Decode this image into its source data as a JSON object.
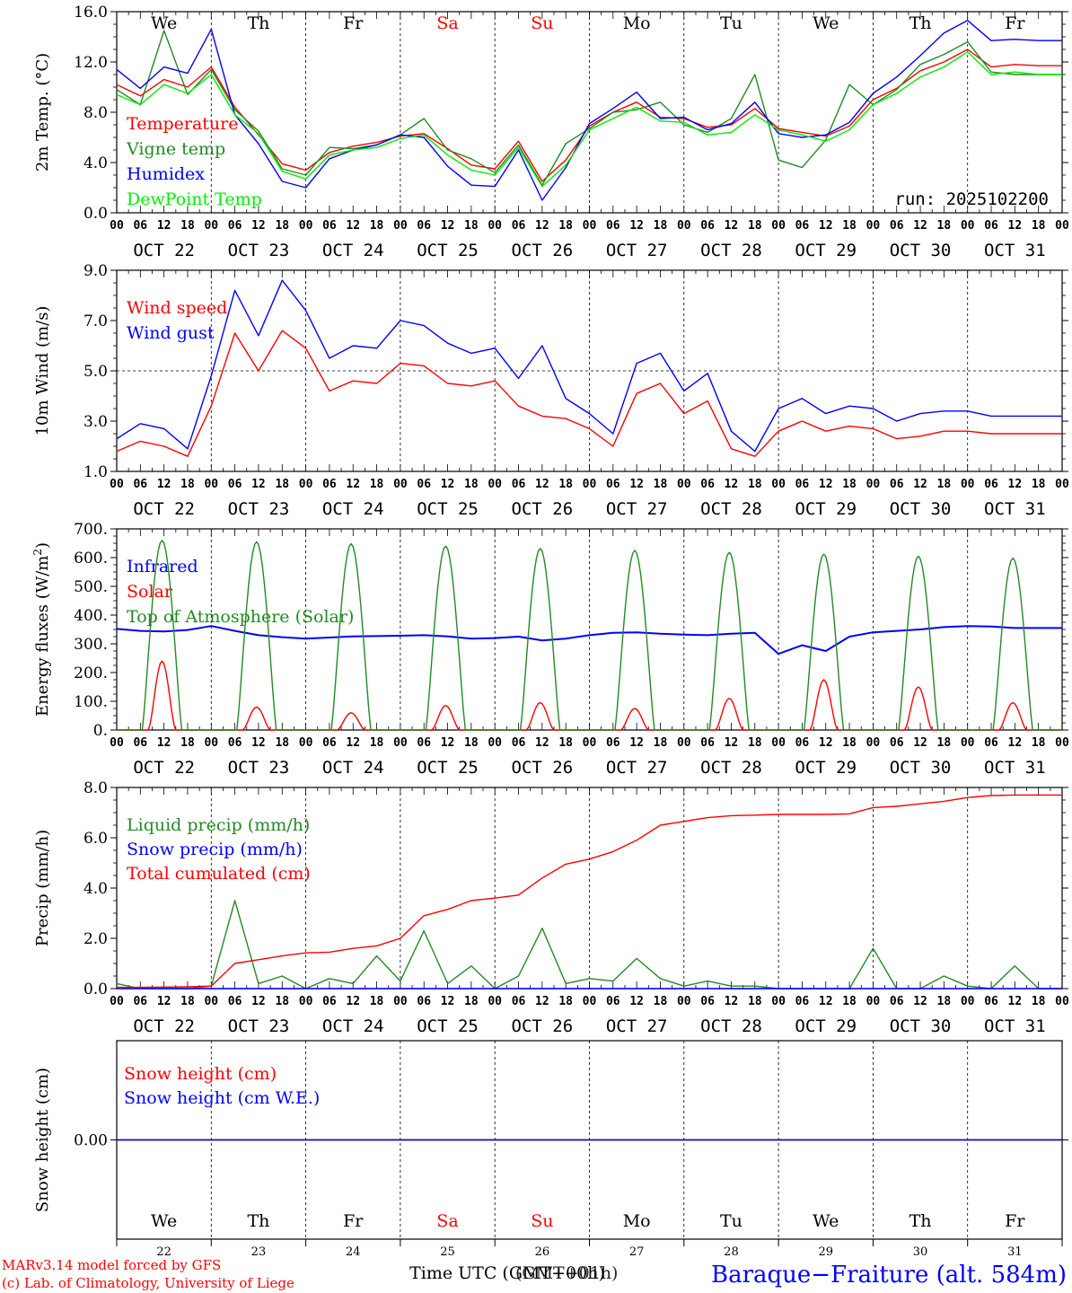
{
  "days": [
    {
      "name": "We",
      "weekend": false,
      "date": "OCT 22",
      "num": "22"
    },
    {
      "name": "Th",
      "weekend": false,
      "date": "OCT 23",
      "num": "23"
    },
    {
      "name": "Fr",
      "weekend": false,
      "date": "OCT 24",
      "num": "24"
    },
    {
      "name": "Sa",
      "weekend": true,
      "date": "OCT 25",
      "num": "25"
    },
    {
      "name": "Su",
      "weekend": true,
      "date": "OCT 26",
      "num": "26"
    },
    {
      "name": "Mo",
      "weekend": false,
      "date": "OCT 27",
      "num": "27"
    },
    {
      "name": "Tu",
      "weekend": false,
      "date": "OCT 28",
      "num": "28"
    },
    {
      "name": "We",
      "weekend": false,
      "date": "OCT 29",
      "num": "29"
    },
    {
      "name": "Th",
      "weekend": false,
      "date": "OCT 30",
      "num": "30"
    },
    {
      "name": "Fr",
      "weekend": false,
      "date": "OCT 31",
      "num": "31"
    }
  ],
  "hour_ticks": [
    "00",
    "06",
    "12",
    "18"
  ],
  "run_label": "run: 2025102200",
  "footer": {
    "credit_1": "MARv3.14 model forced by GFS",
    "credit_2": "(c) Lab. of Climatology, University of Liege",
    "x_title": "Time UTC (GMT+00h)",
    "x_title_overlay": "(GMT+01h)",
    "station": "Baraque−Fraiture (alt. 584m)"
  },
  "colors": {
    "red": "#ff0000",
    "green": "#228b22",
    "blue": "#0000ff",
    "lime": "#00ee00",
    "weekend": "#ff0000",
    "axis": "#000000"
  },
  "chart_data": [
    {
      "type": "line",
      "title": "2m Temp. (°C)",
      "ylabel_main": "2m Temp. (",
      "ylabel_unit": "°C)",
      "ylim": [
        0,
        16
      ],
      "yticks": [
        "0.0",
        "4.0",
        "8.0",
        "12.0",
        "16.0"
      ],
      "ytick_values": [
        0,
        4,
        8,
        12,
        16
      ],
      "x_hours": [
        0,
        6,
        12,
        18,
        24,
        30,
        36,
        42,
        48,
        54,
        60,
        66,
        72,
        78,
        84,
        90,
        96,
        102,
        108,
        114,
        120,
        126,
        132,
        138,
        144,
        150,
        156,
        162,
        168,
        174,
        180,
        186,
        192,
        198,
        204,
        210,
        216,
        222,
        228,
        234,
        240
      ],
      "series": [
        {
          "name": "Temperature",
          "color": "red",
          "values": [
            10.2,
            9.3,
            10.6,
            10.0,
            11.6,
            8.4,
            6.2,
            3.9,
            3.4,
            4.8,
            5.3,
            5.6,
            6.1,
            6.3,
            5.1,
            3.8,
            3.5,
            5.7,
            2.5,
            4.2,
            6.9,
            8.0,
            8.8,
            7.6,
            7.5,
            6.8,
            7.0,
            8.3,
            6.7,
            6.4,
            6.1,
            6.9,
            9.0,
            9.9,
            11.3,
            12.0,
            13.0,
            11.6,
            11.8,
            11.7,
            11.7
          ]
        },
        {
          "name": "Vigne temp",
          "color": "green",
          "values": [
            9.8,
            8.6,
            14.5,
            9.4,
            11.4,
            8.2,
            6.5,
            3.5,
            3.0,
            5.2,
            5.1,
            5.4,
            6.2,
            7.5,
            5.0,
            4.3,
            3.2,
            5.4,
            2.2,
            5.5,
            6.7,
            8.0,
            8.2,
            8.8,
            7.0,
            6.4,
            7.5,
            11.0,
            4.2,
            3.6,
            5.8,
            10.2,
            8.6,
            9.8,
            11.8,
            12.6,
            13.6,
            11.2,
            11.0,
            11.0,
            11.0
          ]
        },
        {
          "name": "Humidex",
          "color": "blue",
          "values": [
            11.4,
            9.9,
            11.6,
            11.1,
            14.6,
            7.8,
            5.5,
            2.5,
            2.0,
            4.3,
            5.0,
            5.4,
            6.2,
            6.0,
            3.7,
            2.2,
            2.1,
            5.0,
            1.0,
            3.6,
            7.1,
            8.3,
            9.6,
            7.5,
            7.6,
            6.6,
            7.1,
            8.8,
            6.3,
            6.0,
            6.2,
            7.2,
            9.5,
            10.8,
            12.5,
            14.3,
            15.3,
            13.7,
            13.8,
            13.7,
            13.7
          ]
        },
        {
          "name": "DewPoint Temp",
          "color": "lime",
          "values": [
            9.4,
            8.6,
            10.2,
            9.5,
            11.0,
            7.8,
            6.3,
            3.3,
            2.7,
            4.6,
            5.0,
            5.2,
            5.9,
            6.2,
            4.6,
            3.4,
            3.0,
            5.2,
            2.1,
            3.8,
            6.6,
            7.5,
            8.4,
            7.3,
            7.2,
            6.2,
            6.4,
            7.8,
            6.6,
            6.2,
            5.7,
            6.6,
            8.6,
            9.5,
            10.8,
            11.6,
            12.8,
            11.0,
            11.2,
            11.0,
            11.0
          ]
        }
      ]
    },
    {
      "type": "line",
      "title": "10m Wind (m/s)",
      "ylabel_main": "10m Wind (m/s)",
      "ylim": [
        1,
        9
      ],
      "yticks": [
        "1.0",
        "3.0",
        "5.0",
        "7.0",
        "9.0"
      ],
      "ytick_values": [
        1,
        3,
        5,
        7,
        9
      ],
      "ref_line": 5,
      "x_hours": [
        0,
        6,
        12,
        18,
        24,
        30,
        36,
        42,
        48,
        54,
        60,
        66,
        72,
        78,
        84,
        90,
        96,
        102,
        108,
        114,
        120,
        126,
        132,
        138,
        144,
        150,
        156,
        162,
        168,
        174,
        180,
        186,
        192,
        198,
        204,
        210,
        216,
        222,
        228,
        234,
        240
      ],
      "series": [
        {
          "name": "Wind speed",
          "color": "red",
          "values": [
            1.8,
            2.2,
            2.0,
            1.6,
            3.6,
            6.5,
            5.0,
            6.6,
            5.9,
            4.2,
            4.6,
            4.5,
            5.3,
            5.2,
            4.5,
            4.4,
            4.6,
            3.6,
            3.2,
            3.1,
            2.7,
            2.0,
            4.1,
            4.5,
            3.3,
            3.8,
            1.9,
            1.6,
            2.6,
            3.0,
            2.6,
            2.8,
            2.7,
            2.3,
            2.4,
            2.6,
            2.6,
            2.5,
            2.5,
            2.5,
            2.5
          ]
        },
        {
          "name": "Wind gust",
          "color": "blue",
          "values": [
            2.3,
            2.9,
            2.7,
            1.9,
            4.8,
            8.2,
            6.4,
            8.6,
            7.4,
            5.5,
            6.0,
            5.9,
            7.0,
            6.8,
            6.1,
            5.7,
            5.9,
            4.7,
            6.0,
            3.9,
            3.3,
            2.5,
            5.3,
            5.7,
            4.2,
            4.9,
            2.6,
            1.8,
            3.5,
            3.9,
            3.3,
            3.6,
            3.5,
            3.0,
            3.3,
            3.4,
            3.4,
            3.2,
            3.2,
            3.2,
            3.2
          ]
        }
      ]
    },
    {
      "type": "line",
      "title": "Energy fluxes (W/m²)",
      "ylabel_main": "Energy fluxes (W/m",
      "ylabel_sup": "2",
      "ylabel_end": ")",
      "ylim": [
        0,
        700
      ],
      "yticks": [
        "0.",
        "100.",
        "200.",
        "300.",
        "400.",
        "500.",
        "600.",
        "700."
      ],
      "ytick_values": [
        0,
        100,
        200,
        300,
        400,
        500,
        600,
        700
      ],
      "x_hours": [
        0,
        6,
        12,
        18,
        24,
        30,
        36,
        42,
        48,
        54,
        60,
        66,
        72,
        78,
        84,
        90,
        96,
        102,
        108,
        114,
        120,
        126,
        132,
        138,
        144,
        150,
        156,
        162,
        168,
        174,
        180,
        186,
        192,
        198,
        204,
        210,
        216,
        222,
        228,
        234,
        240
      ],
      "series": [
        {
          "name": "Infrared",
          "color": "blue",
          "values": [
            352,
            345,
            343,
            348,
            362,
            345,
            330,
            323,
            318,
            322,
            326,
            327,
            328,
            330,
            326,
            318,
            320,
            325,
            312,
            318,
            330,
            338,
            340,
            335,
            332,
            330,
            335,
            338,
            265,
            295,
            275,
            325,
            340,
            345,
            350,
            358,
            362,
            360,
            355,
            355,
            355
          ]
        },
        {
          "name": "Solar",
          "color": "red",
          "daily_peak": [
            240,
            80,
            60,
            85,
            95,
            75,
            110,
            175,
            150,
            95
          ]
        },
        {
          "name": "Top of Atmosphere (Solar)",
          "color": "green",
          "daily_peak": [
            660,
            655,
            648,
            640,
            632,
            625,
            618,
            612,
            605,
            598
          ]
        }
      ]
    },
    {
      "type": "line",
      "title": "Precip (mm/h)",
      "ylabel_main": "Precip (mm/h)",
      "ylim": [
        0,
        8
      ],
      "yticks": [
        "0.0",
        "2.0",
        "4.0",
        "6.0",
        "8.0"
      ],
      "ytick_values": [
        0,
        2,
        4,
        6,
        8
      ],
      "x_hours": [
        0,
        6,
        12,
        18,
        24,
        30,
        36,
        42,
        48,
        54,
        60,
        66,
        72,
        78,
        84,
        90,
        96,
        102,
        108,
        114,
        120,
        126,
        132,
        138,
        144,
        150,
        156,
        162,
        168,
        174,
        180,
        186,
        192,
        198,
        204,
        210,
        216,
        222,
        228,
        234,
        240
      ],
      "series": [
        {
          "name": "Liquid precip (mm/h)",
          "color": "green",
          "values": [
            0.2,
            0.0,
            0.0,
            0.0,
            0.1,
            3.5,
            0.2,
            0.5,
            0.0,
            0.4,
            0.2,
            1.3,
            0.3,
            2.3,
            0.2,
            0.9,
            0.0,
            0.5,
            2.4,
            0.2,
            0.4,
            0.3,
            1.2,
            0.4,
            0.1,
            0.3,
            0.1,
            0.1,
            0.0,
            0.0,
            0.0,
            0.0,
            1.6,
            0.0,
            0.0,
            0.5,
            0.1,
            0.0,
            0.9,
            0.0,
            0.0
          ]
        },
        {
          "name": "Snow precip (mm/h)",
          "color": "blue",
          "values": [
            0,
            0,
            0,
            0,
            0,
            0,
            0,
            0,
            0,
            0,
            0,
            0,
            0,
            0,
            0,
            0,
            0,
            0,
            0,
            0,
            0,
            0,
            0,
            0,
            0,
            0,
            0,
            0,
            0,
            0,
            0,
            0,
            0,
            0,
            0,
            0,
            0,
            0,
            0,
            0,
            0
          ]
        },
        {
          "name": "Total cumulated (cm)",
          "color": "red",
          "values": [
            0.05,
            0.05,
            0.06,
            0.07,
            0.1,
            1.0,
            1.15,
            1.3,
            1.42,
            1.45,
            1.6,
            1.7,
            2.0,
            2.9,
            3.15,
            3.5,
            3.6,
            3.72,
            4.4,
            4.95,
            5.15,
            5.45,
            5.9,
            6.5,
            6.65,
            6.8,
            6.88,
            6.9,
            6.93,
            6.93,
            6.93,
            6.95,
            7.2,
            7.25,
            7.35,
            7.45,
            7.6,
            7.68,
            7.7,
            7.7,
            7.7
          ]
        }
      ]
    },
    {
      "type": "line",
      "title": "Snow height (cm)",
      "ylabel_main": "Snow height (cm)",
      "ylim": [
        -1,
        1
      ],
      "yticks": [
        "0.00"
      ],
      "ytick_values": [
        0
      ],
      "x_hours": [
        0,
        240
      ],
      "series": [
        {
          "name": "Snow height (cm)",
          "color": "red",
          "values": [
            0,
            0
          ]
        },
        {
          "name": "Snow height (cm W.E.)",
          "color": "blue",
          "values": [
            0,
            0
          ]
        }
      ]
    }
  ]
}
